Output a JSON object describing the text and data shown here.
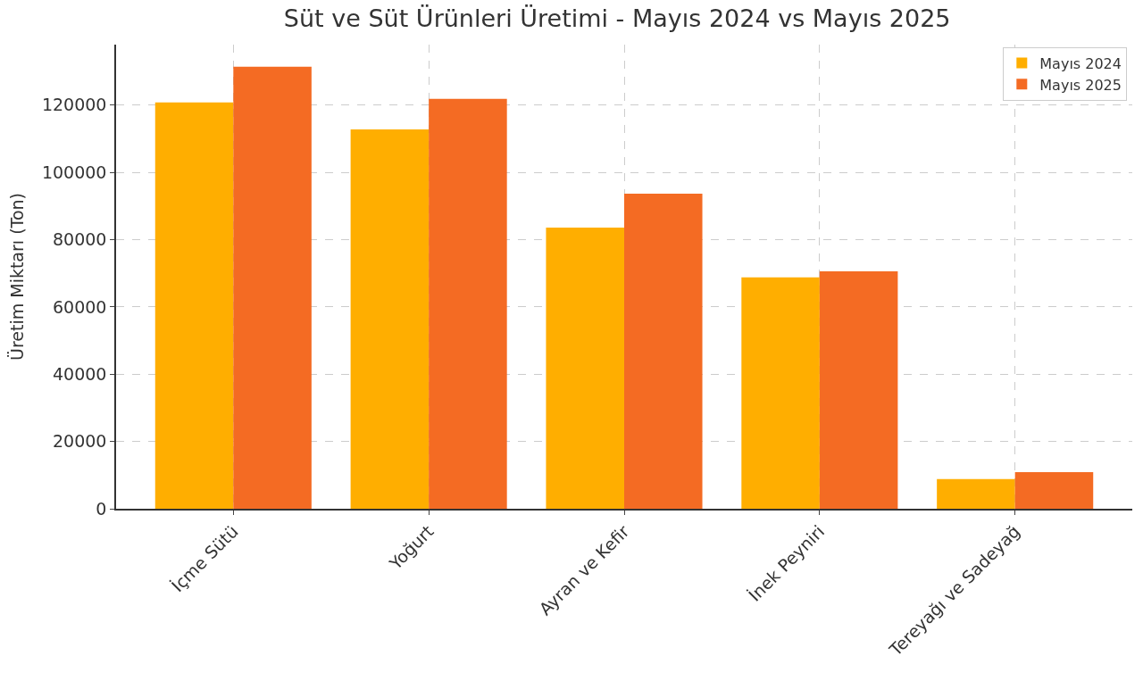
{
  "chart_data": {
    "type": "bar",
    "title": "Süt ve Süt Ürünleri Üretimi - Mayıs 2024 vs Mayıs 2025",
    "ylabel": "Üretim Miktarı (Ton)",
    "categories": [
      "İçme Sütü",
      "Yoğurt",
      "Ayran ve Kefir",
      "İnek Peyniri",
      "Tereyağı ve Sadeyağ"
    ],
    "series": [
      {
        "name": "Mayıs 2024",
        "color": "#ffae00",
        "values": [
          120800,
          112800,
          83600,
          68800,
          8800
        ]
      },
      {
        "name": "Mayıs 2025",
        "color": "#f46b23",
        "values": [
          131400,
          121900,
          93700,
          70600,
          10900
        ]
      }
    ],
    "ylim": [
      0,
      138000
    ],
    "yticks": [
      0,
      20000,
      40000,
      60000,
      80000,
      100000,
      120000
    ],
    "grid": true,
    "legend": "top right"
  }
}
